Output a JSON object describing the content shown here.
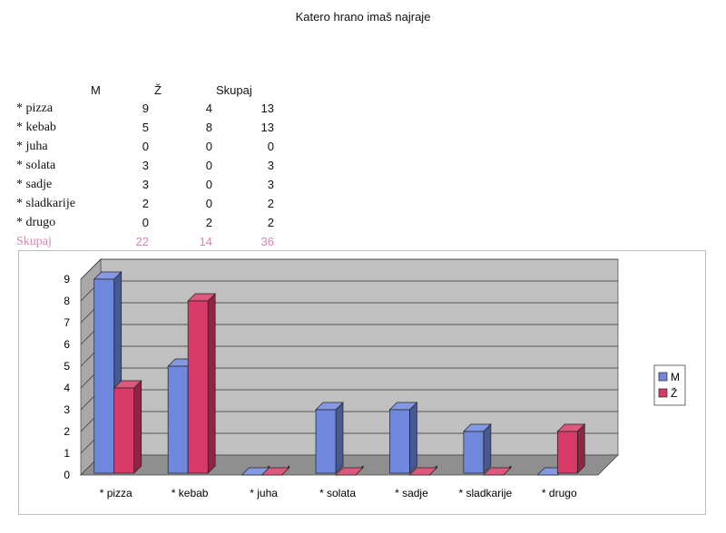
{
  "title": "Katero hrano imaš najraje",
  "table": {
    "headers": [
      "M",
      "Ž",
      "Skupaj"
    ],
    "rows": [
      {
        "label": "* pizza",
        "m": "9",
        "z": "4",
        "total": "13"
      },
      {
        "label": "* kebab",
        "m": "5",
        "z": "8",
        "total": "13"
      },
      {
        "label": "* juha",
        "m": "0",
        "z": "0",
        "total": "0"
      },
      {
        "label": "* solata",
        "m": "3",
        "z": "0",
        "total": "3"
      },
      {
        "label": "* sadje",
        "m": "3",
        "z": "0",
        "total": "3"
      },
      {
        "label": "* sladkarije",
        "m": "2",
        "z": "0",
        "total": "2"
      },
      {
        "label": "* drugo",
        "m": "0",
        "z": "2",
        "total": "2"
      }
    ],
    "total_row": {
      "label": "Skupaj",
      "m": "22",
      "z": "14",
      "total": "36"
    },
    "total_color": "#e07fb7"
  },
  "chart_data": {
    "type": "bar",
    "categories": [
      "* pizza",
      "* kebab",
      "* juha",
      "* solata",
      "* sadje",
      "* sladkarije",
      "* drugo"
    ],
    "series": [
      {
        "name": "M",
        "values": [
          9,
          5,
          0,
          3,
          3,
          2,
          0
        ],
        "color": "#6f87dd"
      },
      {
        "name": "Ž",
        "values": [
          4,
          8,
          0,
          0,
          0,
          0,
          2
        ],
        "color": "#d83a67"
      }
    ],
    "ylim": [
      0,
      9
    ],
    "yticks": [
      "0",
      "1",
      "2",
      "3",
      "4",
      "5",
      "6",
      "7",
      "8",
      "9"
    ],
    "grid": true,
    "legend": "right",
    "style": "3d-column"
  }
}
